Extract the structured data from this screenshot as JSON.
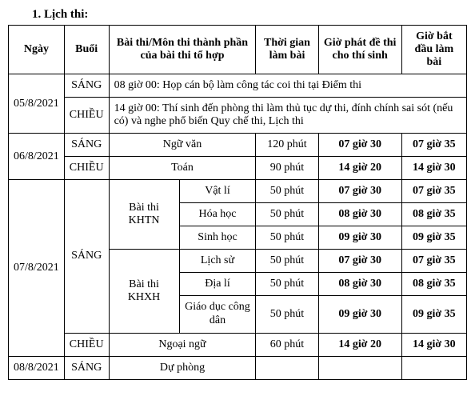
{
  "title": "1. Lịch thi:",
  "headers": {
    "ngay": "Ngày",
    "buoi": "Buổi",
    "baithi": "Bài thi/Môn thi thành phần của bài thi tổ hợp",
    "thoigian": "Thời gian làm bài",
    "giophat": "Giờ phát đề thi cho thí sinh",
    "giobat": "Giờ bắt đầu làm bài"
  },
  "day1": {
    "date": "05/8/2021",
    "sang": "SÁNG",
    "sang_text": "08 giờ 00: Họp cán bộ làm công tác coi thi tại Điểm thi",
    "chieu": "CHIỀU",
    "chieu_text": "14 giờ 00: Thí sinh đến phòng thi làm thủ tục dự thi, đính chính sai sót (nếu có) và nghe phổ biến Quy chế thi, Lịch thi"
  },
  "day2": {
    "date": "06/8/2021",
    "sang": "SÁNG",
    "sang_subject": "Ngữ văn",
    "sang_time": "120 phút",
    "sang_gp": "07 giờ 30",
    "sang_gb": "07 giờ 35",
    "chieu": "CHIỀU",
    "chieu_subject": "Toán",
    "chieu_time": "90 phút",
    "chieu_gp": "14 giờ 20",
    "chieu_gb": "14 giờ 30"
  },
  "day3": {
    "date": "07/8/2021",
    "sang": "SÁNG",
    "khtn": "Bài thi KHTN",
    "khxh": "Bài thi KHXH",
    "rows": [
      {
        "mon": "Vật lí",
        "time": "50 phút",
        "gp": "07 giờ 30",
        "gb": "07 giờ 35"
      },
      {
        "mon": "Hóa học",
        "time": "50 phút",
        "gp": "08 giờ 30",
        "gb": "08 giờ 35"
      },
      {
        "mon": "Sinh học",
        "time": "50 phút",
        "gp": "09 giờ 30",
        "gb": "09 giờ 35"
      },
      {
        "mon": "Lịch sử",
        "time": "50 phút",
        "gp": "07 giờ 30",
        "gb": "07 giờ 35"
      },
      {
        "mon": "Địa lí",
        "time": "50 phút",
        "gp": "08 giờ 30",
        "gb": "08 giờ 35"
      },
      {
        "mon": "Giáo dục công dân",
        "time": "50 phút",
        "gp": "09 giờ 30",
        "gb": "09 giờ 35"
      }
    ],
    "chieu": "CHIỀU",
    "chieu_subject": "Ngoại ngữ",
    "chieu_time": "60 phút",
    "chieu_gp": "14 giờ 20",
    "chieu_gb": "14 giờ 30"
  },
  "day4": {
    "date": "08/8/2021",
    "sang": "SÁNG",
    "subject": "Dự phòng"
  }
}
